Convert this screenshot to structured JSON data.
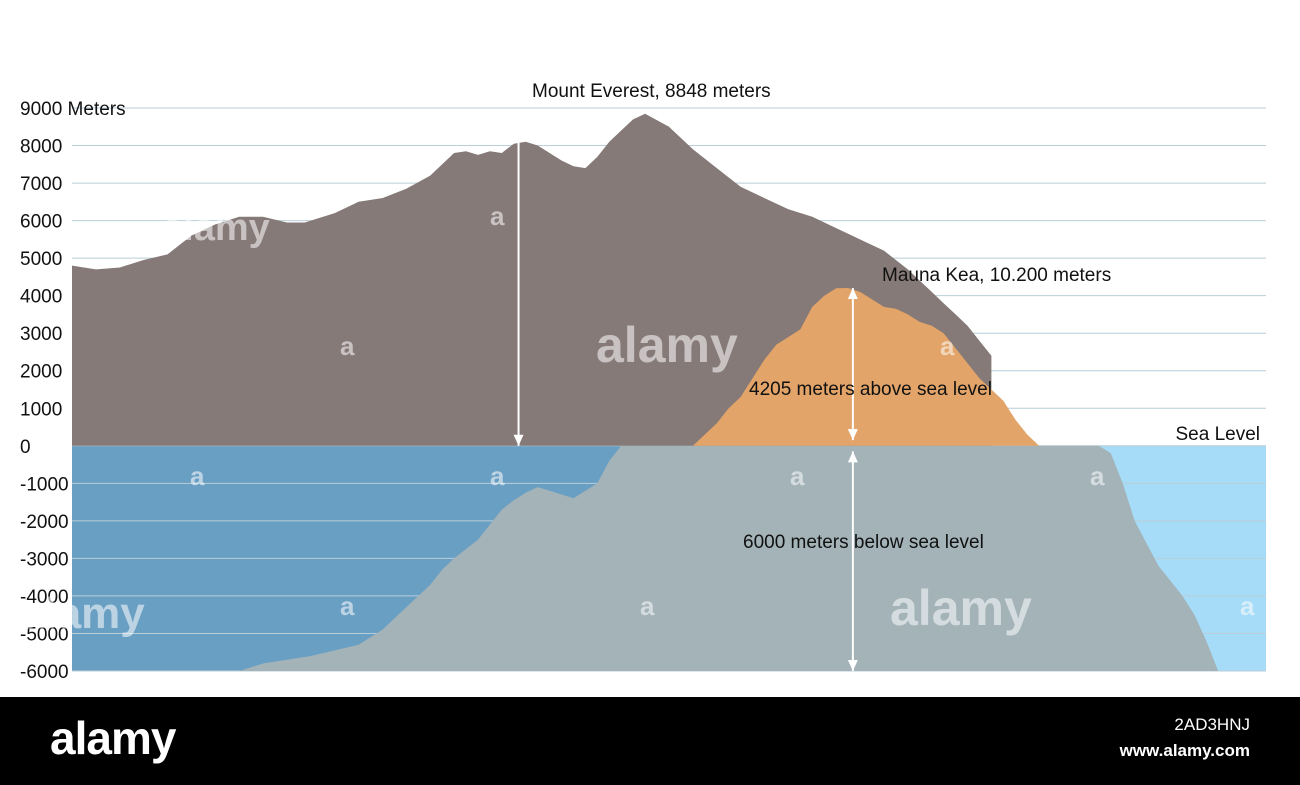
{
  "chart_data": {
    "type": "area",
    "title": "",
    "ylabel": "Meters",
    "ylim": [
      -6000,
      9000
    ],
    "yticks": [
      {
        "value": 9000,
        "label": "9000 Meters"
      },
      {
        "value": 8000,
        "label": "8000"
      },
      {
        "value": 7000,
        "label": "7000"
      },
      {
        "value": 6000,
        "label": "6000"
      },
      {
        "value": 5000,
        "label": "5000"
      },
      {
        "value": 4000,
        "label": "4000"
      },
      {
        "value": 3000,
        "label": "3000"
      },
      {
        "value": 2000,
        "label": "2000"
      },
      {
        "value": 1000,
        "label": "1000"
      },
      {
        "value": 0,
        "label": "0"
      },
      {
        "value": -1000,
        "label": "-1000"
      },
      {
        "value": -2000,
        "label": "-2000"
      },
      {
        "value": -3000,
        "label": "-3000"
      },
      {
        "value": -4000,
        "label": "-4000"
      },
      {
        "value": -5000,
        "label": "-5000"
      },
      {
        "value": -6000,
        "label": "-6000"
      }
    ],
    "grid": true,
    "xlim": [
      0,
      100
    ],
    "sea_level": {
      "value": 0,
      "label": "Sea Level"
    },
    "series": [
      {
        "id": "everest",
        "color": "#857a78",
        "x": [
          0,
          2,
          4,
          6,
          8,
          10,
          12,
          14,
          16,
          18,
          19.5,
          22,
          24,
          26,
          28,
          30,
          32,
          33,
          34,
          35,
          36,
          37,
          38,
          39,
          40,
          41,
          42,
          43,
          44,
          45,
          46,
          47,
          48,
          50,
          52,
          54,
          56,
          58,
          60,
          62,
          64,
          66,
          68,
          70,
          72,
          73,
          74,
          75,
          76,
          77
        ],
        "y": [
          4800,
          4700,
          4750,
          4950,
          5100,
          5600,
          5900,
          6100,
          6100,
          5950,
          5950,
          6200,
          6500,
          6600,
          6850,
          7200,
          7800,
          7850,
          7750,
          7850,
          7800,
          8050,
          8100,
          8000,
          7800,
          7600,
          7450,
          7400,
          7700,
          8100,
          8400,
          8700,
          8848,
          8500,
          7900,
          7400,
          6900,
          6600,
          6300,
          6100,
          5800,
          5500,
          5200,
          4700,
          4100,
          3800,
          3500,
          3200,
          2800,
          2400
        ]
      },
      {
        "id": "mauna-kea-above",
        "color": "#e2a468",
        "x": [
          50,
          52,
          54,
          55,
          56,
          57,
          58,
          59,
          60,
          61,
          62,
          63,
          64,
          65,
          66,
          67,
          68,
          69,
          70,
          71,
          72,
          73,
          74,
          75,
          76,
          77,
          78,
          79,
          80,
          81,
          82,
          83,
          84,
          85,
          86,
          87,
          88,
          89,
          90,
          91
        ],
        "y": [
          0,
          0,
          600,
          1000,
          1300,
          1800,
          2300,
          2700,
          2900,
          3100,
          3700,
          4000,
          4200,
          4205,
          4100,
          3900,
          3700,
          3650,
          3500,
          3300,
          3200,
          3000,
          2600,
          2200,
          1800,
          1500,
          1200,
          700,
          300,
          0,
          0,
          0,
          0,
          0,
          0,
          0,
          0,
          0,
          0,
          0
        ]
      },
      {
        "id": "mauna-kea-below",
        "color": "#a3b3b8",
        "x": [
          14,
          16,
          18,
          20,
          22,
          24,
          26,
          28,
          30,
          31,
          32,
          34,
          35,
          36,
          37,
          38,
          39,
          40,
          42,
          44,
          45,
          46,
          47,
          48,
          49,
          50,
          52,
          54,
          56,
          58,
          60,
          62,
          64,
          66,
          68,
          70,
          72,
          74,
          76,
          78,
          80,
          82,
          84,
          86,
          87,
          88,
          89,
          90,
          91,
          92,
          93,
          94,
          95,
          96
        ],
        "y": [
          -6000,
          -5800,
          -5700,
          -5600,
          -5450,
          -5300,
          -4900,
          -4300,
          -3700,
          -3300,
          -3000,
          -2500,
          -2100,
          -1700,
          -1450,
          -1250,
          -1100,
          -1200,
          -1400,
          -1000,
          -400,
          0,
          0,
          0,
          0,
          0,
          0,
          0,
          0,
          0,
          0,
          0,
          0,
          0,
          0,
          0,
          0,
          0,
          0,
          0,
          0,
          0,
          0,
          0,
          -200,
          -1000,
          -2000,
          -2600,
          -3200,
          -3600,
          -4000,
          -4500,
          -5200,
          -6000
        ]
      }
    ],
    "annotations": [
      {
        "id": "everest",
        "text": "Mount Everest, 8848 meters",
        "x": 37.4,
        "y_from": 0,
        "y_to": 8848
      },
      {
        "id": "mauna-above",
        "text": "4205 meters above sea level",
        "x": 65.4,
        "y_from": 0,
        "y_to": 4205
      },
      {
        "id": "mauna-below",
        "text": "6000 meters below sea level",
        "x": 65.4,
        "y_from": 0,
        "y_to": -6000
      },
      {
        "id": "mauna-kea",
        "text": "Mauna Kea, 10.200 meters"
      }
    ]
  },
  "colors": {
    "sky": "#ffffff",
    "ocean_left": "#6a9fc4",
    "ocean_right": "#a6dcf7",
    "gridline": "#b9ced8",
    "arrow": "#ffffff"
  },
  "watermark": {
    "text": "alamy",
    "small": "a"
  },
  "footer": {
    "logo": "alamy",
    "image_id": "2AD3HNJ",
    "url": "www.alamy.com"
  }
}
